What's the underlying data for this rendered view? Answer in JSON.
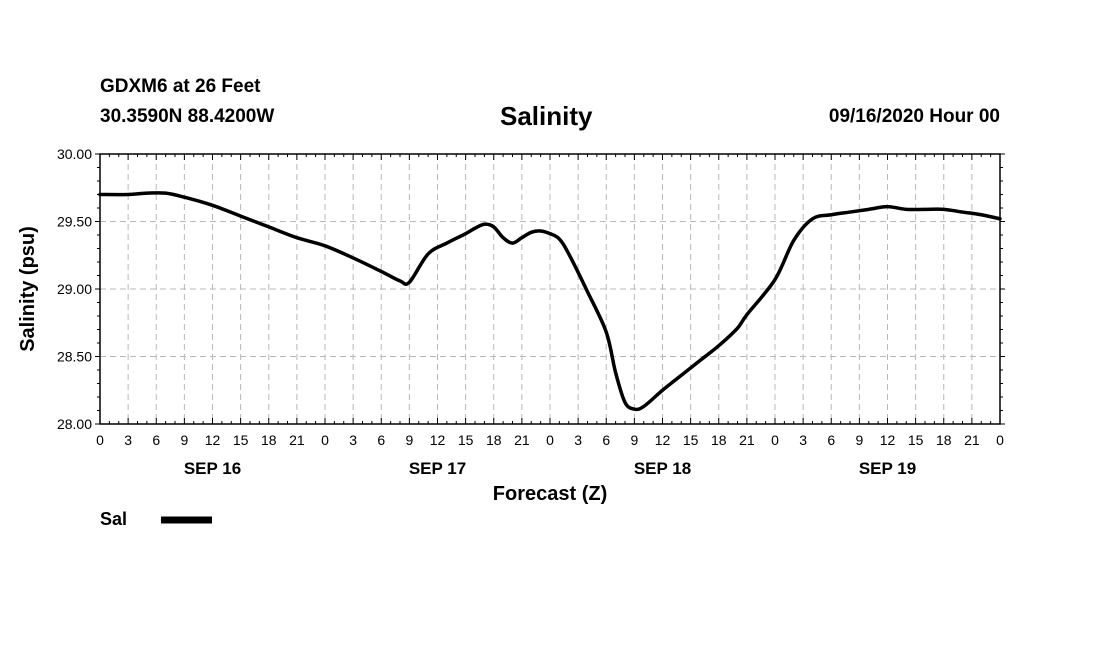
{
  "header": {
    "station_line": "GDXM6 at 26 Feet",
    "coords_line": "30.3590N 88.4200W",
    "date_line": "09/16/2020 Hour 00"
  },
  "chart_data": {
    "type": "line",
    "title": "Salinity",
    "xlabel": "Forecast (Z)",
    "ylabel": "Salinity (psu)",
    "ylim": [
      28.0,
      30.0
    ],
    "xlim_hours": [
      0,
      96
    ],
    "y_ticks": [
      "28.00",
      "28.50",
      "29.00",
      "29.50",
      "30.00"
    ],
    "x_tick_labels": [
      "0",
      "3",
      "6",
      "9",
      "12",
      "15",
      "18",
      "21",
      "0",
      "3",
      "6",
      "9",
      "12",
      "15",
      "18",
      "21",
      "0",
      "3",
      "6",
      "9",
      "12",
      "15",
      "18",
      "21",
      "0",
      "3",
      "6",
      "9",
      "12",
      "15",
      "18",
      "21",
      "0"
    ],
    "day_labels": [
      {
        "label": "SEP 16",
        "hour": 12
      },
      {
        "label": "SEP 17",
        "hour": 36
      },
      {
        "label": "SEP 18",
        "hour": 60
      },
      {
        "label": "SEP 19",
        "hour": 84
      }
    ],
    "grid": true,
    "series": [
      {
        "name": "Sal",
        "x": [
          0,
          3,
          5,
          7,
          9,
          12,
          15,
          18,
          21,
          24,
          27,
          30,
          32,
          33,
          35,
          37,
          39,
          40,
          41,
          42,
          43,
          44,
          45,
          46,
          47,
          48,
          49,
          50,
          52,
          54,
          55,
          56,
          57,
          58,
          60,
          62,
          64,
          66,
          68,
          69,
          72,
          74,
          76,
          78,
          80,
          82,
          84,
          86,
          88,
          90,
          92,
          94,
          96
        ],
        "y": [
          29.7,
          29.7,
          29.71,
          29.71,
          29.68,
          29.62,
          29.54,
          29.46,
          29.38,
          29.32,
          29.23,
          29.13,
          29.06,
          29.05,
          29.26,
          29.34,
          29.41,
          29.45,
          29.48,
          29.46,
          29.38,
          29.34,
          29.38,
          29.42,
          29.43,
          29.41,
          29.37,
          29.26,
          28.98,
          28.68,
          28.38,
          28.16,
          28.11,
          28.13,
          28.25,
          28.36,
          28.47,
          28.58,
          28.71,
          28.81,
          29.07,
          29.36,
          29.52,
          29.55,
          29.57,
          29.59,
          29.61,
          29.59,
          29.59,
          29.59,
          29.57,
          29.55,
          29.52
        ]
      }
    ]
  },
  "legend": {
    "label": "Sal",
    "color": "#000000"
  }
}
